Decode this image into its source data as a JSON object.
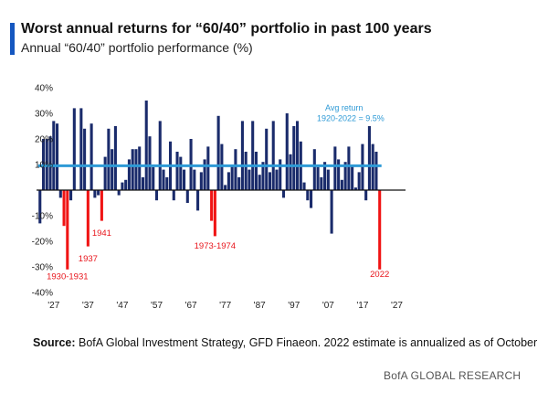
{
  "header": {
    "title": "Worst annual returns for “60/40” portfolio in past 100 years",
    "subtitle": "Annual “60/40” portfolio performance (%)"
  },
  "footer": {
    "source_label": "Source:",
    "source_text": " BofA Global Investment Strategy, GFD Finaeon. 2022 estimate is annualized as of October",
    "brand": "BofA GLOBAL RESEARCH"
  },
  "colors": {
    "positive_bar": "#1a2b6b",
    "negative_bar": "#1a2b6b",
    "worst_bar": "#f01414",
    "avg_line": "#2e9ad6",
    "accent": "#1557c0",
    "annotation_red": "#e8141b",
    "annotation_blue": "#2e9ad6"
  },
  "chart_data": {
    "type": "bar",
    "title": "",
    "xlabel": "",
    "ylabel": "",
    "ylim": [
      -40,
      40
    ],
    "yticks": [
      -40,
      -30,
      -20,
      -10,
      0,
      10,
      20,
      30,
      40
    ],
    "ytick_labels": [
      "-40%",
      "-30%",
      "-20%",
      "-10%",
      "",
      "10%",
      "20%",
      "30%",
      "40%"
    ],
    "xticks": [
      1927,
      1937,
      1947,
      1957,
      1967,
      1977,
      1987,
      1997,
      2007,
      2017,
      2027
    ],
    "xtick_labels": [
      "'27",
      "'37",
      "'47",
      "'57",
      "'67",
      "'77",
      "'87",
      "'97",
      "'07",
      "'17",
      "'27"
    ],
    "x_range": [
      1922,
      2029
    ],
    "grid": false,
    "categories": [
      1923,
      1924,
      1925,
      1926,
      1927,
      1928,
      1929,
      1930,
      1931,
      1932,
      1933,
      1934,
      1935,
      1936,
      1937,
      1938,
      1939,
      1940,
      1941,
      1942,
      1943,
      1944,
      1945,
      1946,
      1947,
      1948,
      1949,
      1950,
      1951,
      1952,
      1953,
      1954,
      1955,
      1956,
      1957,
      1958,
      1959,
      1960,
      1961,
      1962,
      1963,
      1964,
      1965,
      1966,
      1967,
      1968,
      1969,
      1970,
      1971,
      1972,
      1973,
      1974,
      1975,
      1976,
      1977,
      1978,
      1979,
      1980,
      1981,
      1982,
      1983,
      1984,
      1985,
      1986,
      1987,
      1988,
      1989,
      1990,
      1991,
      1992,
      1993,
      1994,
      1995,
      1996,
      1997,
      1998,
      1999,
      2000,
      2001,
      2002,
      2003,
      2004,
      2005,
      2006,
      2007,
      2008,
      2009,
      2010,
      2011,
      2012,
      2013,
      2014,
      2015,
      2016,
      2017,
      2018,
      2019,
      2020,
      2021,
      2022
    ],
    "values": [
      -13,
      20,
      20,
      21,
      27,
      26,
      -3,
      -14,
      -31,
      -4,
      32,
      0,
      32,
      24,
      -22,
      26,
      -3,
      -2,
      -12,
      13,
      24,
      16,
      25,
      -2,
      3,
      4,
      12,
      16,
      16,
      17,
      5,
      35,
      21,
      9,
      -4,
      27,
      8,
      5,
      19,
      -4,
      15,
      13,
      8,
      -5,
      20,
      8,
      -8,
      7,
      12,
      17,
      -12,
      -18,
      29,
      18,
      2,
      7,
      10,
      16,
      5,
      27,
      15,
      8,
      27,
      15,
      6,
      11,
      24,
      7,
      27,
      8,
      12,
      -3,
      30,
      14,
      25,
      27,
      19,
      3,
      -4,
      -7,
      16,
      9,
      5,
      11,
      8,
      -17,
      17,
      12,
      4,
      11,
      17,
      10,
      1,
      7,
      18,
      -4,
      25,
      18,
      15,
      -31
    ],
    "worst_years": [
      1930,
      1931,
      1937,
      1941,
      1973,
      1974,
      2022
    ],
    "average": {
      "value": 9.5,
      "label_line1": "Avg return",
      "label_line2": "1920-2022 = 9.5%"
    },
    "annotations": [
      {
        "text": "1930-1931",
        "year": 1931,
        "y": -32
      },
      {
        "text": "1937",
        "year": 1937,
        "y": -25
      },
      {
        "text": "1941",
        "year": 1941,
        "y": -15
      },
      {
        "text": "1973-1974",
        "year": 1974,
        "y": -20
      },
      {
        "text": "2022",
        "year": 2022,
        "y": -31
      }
    ]
  }
}
